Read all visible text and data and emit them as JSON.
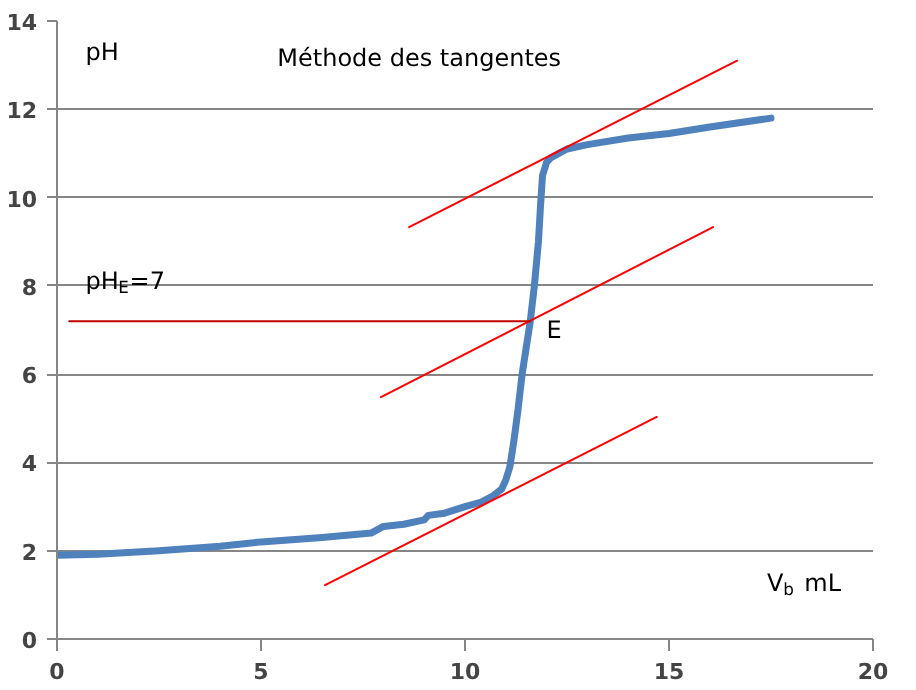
{
  "chart_data": {
    "type": "line",
    "title": "Méthode des tangentes",
    "xlabel": "V$_{b}$ mL",
    "ylabel": "pH",
    "xlim": [
      0,
      20
    ],
    "ylim": [
      0,
      14
    ],
    "xticks": [
      0,
      5,
      10,
      15,
      20
    ],
    "yticks": [
      0,
      2,
      4,
      6,
      8,
      10,
      12,
      14
    ],
    "grid": "y",
    "annotations": [
      {
        "text": "E",
        "x": 11.6,
        "y": 7.2
      },
      "pH$_{E}$=7"
    ],
    "series": [
      {
        "color": "#4f81bd",
        "x": [
          0,
          1,
          2.5,
          4,
          5,
          6.5,
          7.7,
          8,
          8.5,
          9,
          9.1,
          9.5,
          10,
          10.4,
          10.7,
          10.9,
          11,
          11.1,
          11.2,
          11.3,
          11.4,
          11.5,
          11.6,
          11.7,
          11.8,
          11.85,
          11.9,
          12,
          12.1,
          12.3,
          12.5,
          13,
          14,
          15,
          16,
          17.5
        ],
        "values": [
          1.9,
          1.92,
          2.0,
          2.1,
          2.2,
          2.3,
          2.4,
          2.55,
          2.6,
          2.7,
          2.8,
          2.85,
          3.0,
          3.1,
          3.25,
          3.4,
          3.6,
          3.9,
          4.5,
          5.2,
          6.0,
          6.6,
          7.2,
          8.0,
          9.0,
          9.8,
          10.5,
          10.8,
          10.9,
          11.0,
          11.1,
          11.2,
          11.35,
          11.45,
          11.6,
          11.8
        ]
      },
      {
        "color": "#ff0000",
        "x": [
          8.63,
          16.67
        ],
        "values": [
          9.33,
          13.1
        ]
      },
      {
        "color": "#ff0000",
        "x": [
          7.94,
          16.08
        ],
        "values": [
          5.48,
          9.33
        ]
      },
      {
        "color": "#ff0000",
        "x": [
          6.57,
          14.7
        ],
        "values": [
          1.22,
          5.03
        ]
      },
      {
        "color": "#c00000",
        "x": [
          11.6,
          0.3
        ],
        "values": [
          7.2,
          7.2
        ]
      }
    ]
  }
}
